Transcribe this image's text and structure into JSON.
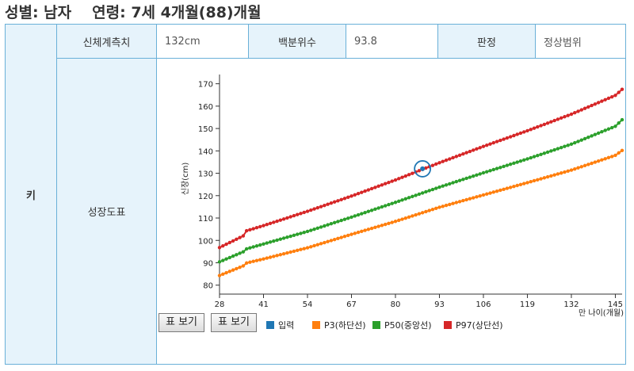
{
  "header": {
    "gender": "성별: 남자",
    "age": "연령: 7세 4개월(88)개월"
  },
  "table": {
    "row_label": "키",
    "measure_label": "신체계측치",
    "measure_value": "132cm",
    "percentile_label": "백분위수",
    "percentile_value": "93.8",
    "judgment_label": "판정",
    "judgment_value": "정상범위",
    "chart_label": "성장도표"
  },
  "buttons": {
    "table_view_1": "표 보기",
    "table_view_2": "표 보기"
  },
  "chart_data": {
    "type": "line",
    "title": "",
    "xlabel": "만 나이(개월)",
    "ylabel": "신장(cm)",
    "xlim": [
      28,
      147
    ],
    "ylim": [
      76,
      172
    ],
    "xticks": [
      28,
      41,
      54,
      67,
      80,
      93,
      106,
      119,
      132,
      145
    ],
    "yticks": [
      80,
      90,
      100,
      110,
      120,
      130,
      140,
      150,
      160,
      170
    ],
    "legend_position": "bottom",
    "series": [
      {
        "name": "입력",
        "color": "#1f77b4",
        "marker": "circle",
        "x": [
          88
        ],
        "y": [
          132
        ]
      },
      {
        "name": "P3(하단선)",
        "color": "#ff7f0e",
        "x": [
          28,
          35,
          36,
          41,
          54,
          67,
          80,
          93,
          106,
          119,
          132,
          145,
          147
        ],
        "y": [
          84.3,
          88.6,
          89.9,
          91.7,
          96.7,
          102.7,
          108.5,
          114.8,
          120.3,
          125.8,
          131.4,
          138.0,
          140.2
        ]
      },
      {
        "name": "P50(중앙선)",
        "color": "#2ca02c",
        "x": [
          28,
          35,
          36,
          41,
          54,
          67,
          80,
          93,
          106,
          119,
          132,
          145,
          147
        ],
        "y": [
          90.4,
          94.9,
          96.2,
          98.4,
          104.0,
          110.4,
          117.0,
          123.8,
          130.2,
          136.4,
          143.0,
          151.0,
          153.9
        ]
      },
      {
        "name": "P97(상단선)",
        "color": "#d62728",
        "x": [
          28,
          35,
          36,
          41,
          54,
          67,
          80,
          93,
          106,
          119,
          132,
          145,
          147
        ],
        "y": [
          96.8,
          102.0,
          104.3,
          106.6,
          113.0,
          119.8,
          127.0,
          134.7,
          142.0,
          149.0,
          156.4,
          164.8,
          167.5
        ]
      }
    ]
  }
}
